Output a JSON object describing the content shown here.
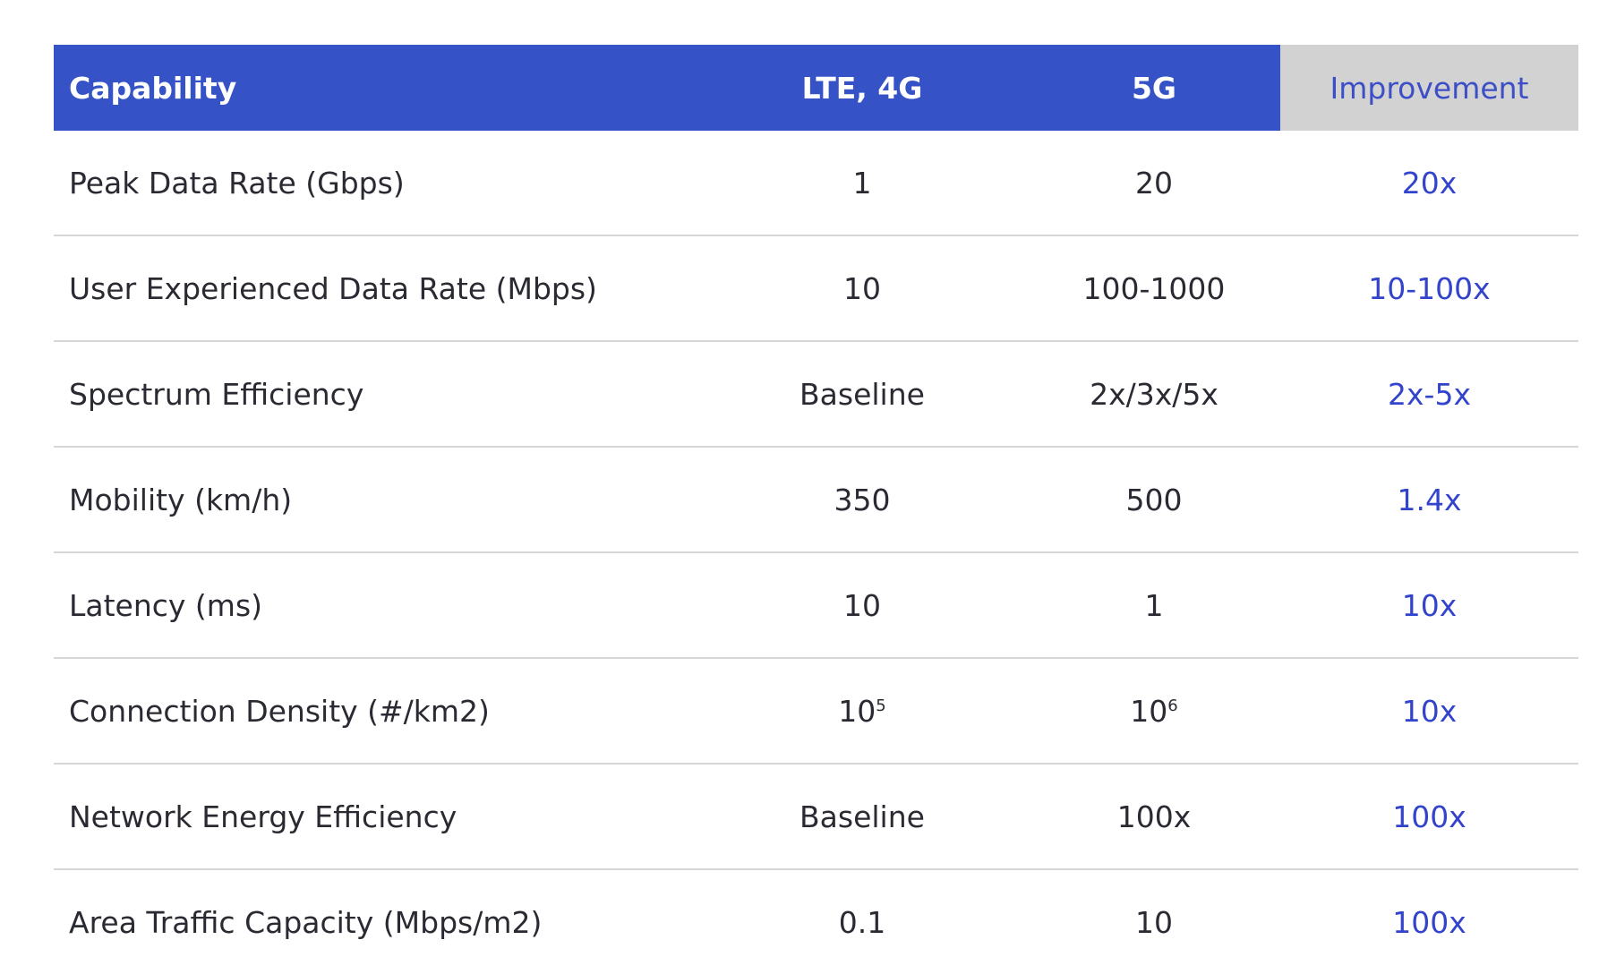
{
  "header": {
    "capability": "Capability",
    "lte": "LTE, 4G",
    "fiveg": "5G",
    "improvement": "Improvement"
  },
  "colors": {
    "header_bg": "#3553c6",
    "improvement_header_bg": "#d2d2d2",
    "improvement_text": "#3344cc"
  },
  "rows": [
    {
      "capability": "Peak Data Rate (Gbps)",
      "lte": "1",
      "fiveg": "20",
      "improvement": "20x"
    },
    {
      "capability": "User Experienced Data Rate (Mbps)",
      "lte": "10",
      "fiveg": "100-1000",
      "improvement": "10-100x"
    },
    {
      "capability": "Spectrum Efficiency",
      "lte": "Baseline",
      "fiveg": "2x/3x/5x",
      "improvement": "2x-5x"
    },
    {
      "capability": "Mobility (km/h)",
      "lte": "350",
      "fiveg": "500",
      "improvement": "1.4x"
    },
    {
      "capability": "Latency (ms)",
      "lte": "10",
      "fiveg": "1",
      "improvement": "10x"
    },
    {
      "capability": "Connection Density (#/km2)",
      "lte": "10",
      "lte_exp": "5",
      "fiveg": "10",
      "fiveg_exp": "6",
      "improvement": "10x"
    },
    {
      "capability": "Network Energy Efficiency",
      "lte": "Baseline",
      "fiveg": "100x",
      "improvement": "100x"
    },
    {
      "capability": "Area Traffic Capacity (Mbps/m2)",
      "lte": "0.1",
      "fiveg": "10",
      "improvement": "100x"
    }
  ]
}
